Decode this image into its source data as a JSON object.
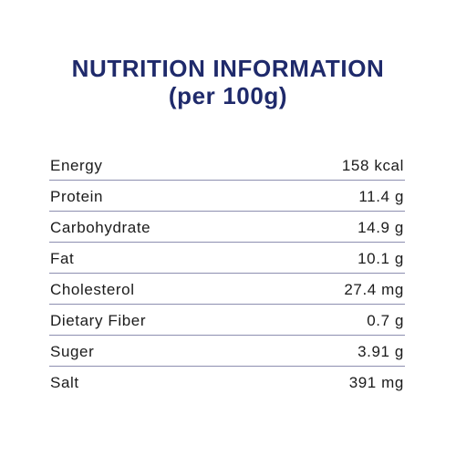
{
  "title": {
    "line1": "NUTRITION INFORMATION",
    "line2": "(per 100g)"
  },
  "colors": {
    "title": "#1f2a6b",
    "divider": "#8d8fb0",
    "text": "#1b1b1b"
  },
  "rows": [
    {
      "name": "Energy",
      "value": "158 kcal"
    },
    {
      "name": "Protein",
      "value": "11.4 g"
    },
    {
      "name": "Carbohydrate",
      "value": "14.9 g"
    },
    {
      "name": "Fat",
      "value": "10.1 g"
    },
    {
      "name": "Cholesterol",
      "value": "27.4 mg"
    },
    {
      "name": "Dietary Fiber",
      "value": "0.7 g"
    },
    {
      "name": "Suger",
      "value": "3.91 g"
    },
    {
      "name": "Salt",
      "value": "391 mg"
    }
  ]
}
